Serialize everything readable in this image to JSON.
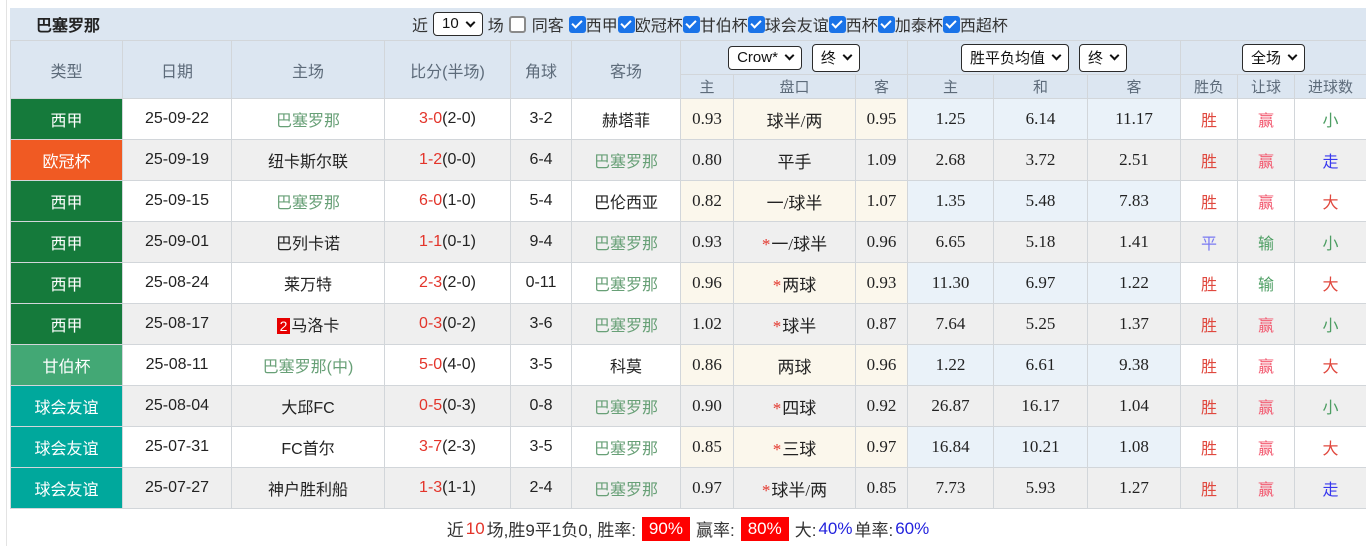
{
  "topbar": {
    "title": "巴塞罗那",
    "recent_label": "近",
    "recent_value": "10",
    "games_label": "场",
    "same_venue": {
      "label": "同客",
      "checked": false
    },
    "leagues": [
      {
        "label": "西甲",
        "checked": true
      },
      {
        "label": "欧冠杯",
        "checked": true
      },
      {
        "label": "甘伯杯",
        "checked": true
      },
      {
        "label": "球会友谊",
        "checked": true
      },
      {
        "label": "西杯",
        "checked": true
      },
      {
        "label": "加泰杯",
        "checked": true
      },
      {
        "label": "西超杯",
        "checked": true
      }
    ]
  },
  "table": {
    "headers": {
      "type": "类型",
      "date": "日期",
      "home": "主场",
      "score": "比分(半场)",
      "corners": "角球",
      "away": "客场",
      "odds_group": {
        "provider_select": "Crow*",
        "time_select": "终",
        "home": "主",
        "line": "盘口",
        "away": "客"
      },
      "avg_group": {
        "provider_select": "胜平负均值",
        "time_select": "终",
        "home": "主",
        "draw": "和",
        "away": "客"
      },
      "result_group": {
        "scope_select": "全场",
        "outcome": "胜负",
        "handicap": "让球",
        "goals": "进球数"
      }
    },
    "rows": [
      {
        "league": {
          "label": "西甲",
          "bg": "#157a3b"
        },
        "date": "25-09-22",
        "home": {
          "name": "巴塞罗那",
          "highlight": true
        },
        "score": {
          "main": "3-0",
          "half": "(2-0)"
        },
        "corners": "3-2",
        "away": {
          "name": "赫塔菲",
          "highlight": false
        },
        "odds": {
          "home": "0.93",
          "star": false,
          "line": "球半/两",
          "away": "0.95"
        },
        "avg": {
          "home": "1.25",
          "draw": "6.14",
          "away": "11.17"
        },
        "result": {
          "outcome": {
            "label": "胜",
            "color": "red"
          },
          "handicap": {
            "label": "赢",
            "color": "pink"
          },
          "goals": {
            "label": "小",
            "color": "green"
          }
        }
      },
      {
        "league": {
          "label": "欧冠杯",
          "bg": "#f05a23"
        },
        "date": "25-09-19",
        "home": {
          "name": "纽卡斯尔联",
          "highlight": false
        },
        "score": {
          "main": "1-2",
          "half": "(0-0)"
        },
        "corners": "6-4",
        "away": {
          "name": "巴塞罗那",
          "highlight": true
        },
        "odds": {
          "home": "0.80",
          "star": false,
          "line": "平手",
          "away": "1.09"
        },
        "avg": {
          "home": "2.68",
          "draw": "3.72",
          "away": "2.51"
        },
        "result": {
          "outcome": {
            "label": "胜",
            "color": "red"
          },
          "handicap": {
            "label": "赢",
            "color": "pink"
          },
          "goals": {
            "label": "走",
            "color": "blue"
          }
        }
      },
      {
        "league": {
          "label": "西甲",
          "bg": "#157a3b"
        },
        "date": "25-09-15",
        "home": {
          "name": "巴塞罗那",
          "highlight": true
        },
        "score": {
          "main": "6-0",
          "half": "(1-0)"
        },
        "corners": "5-4",
        "away": {
          "name": "巴伦西亚",
          "highlight": false
        },
        "odds": {
          "home": "0.82",
          "star": false,
          "line": "一/球半",
          "away": "1.07"
        },
        "avg": {
          "home": "1.35",
          "draw": "5.48",
          "away": "7.83"
        },
        "result": {
          "outcome": {
            "label": "胜",
            "color": "red"
          },
          "handicap": {
            "label": "赢",
            "color": "pink"
          },
          "goals": {
            "label": "大",
            "color": "red"
          }
        }
      },
      {
        "league": {
          "label": "西甲",
          "bg": "#157a3b"
        },
        "date": "25-09-01",
        "home": {
          "name": "巴列卡诺",
          "highlight": false
        },
        "score": {
          "main": "1-1",
          "half": "(0-1)"
        },
        "corners": "9-4",
        "away": {
          "name": "巴塞罗那",
          "highlight": true
        },
        "odds": {
          "home": "0.93",
          "star": true,
          "line": "一/球半",
          "away": "0.96"
        },
        "avg": {
          "home": "6.65",
          "draw": "5.18",
          "away": "1.41"
        },
        "result": {
          "outcome": {
            "label": "平",
            "color": "purple"
          },
          "handicap": {
            "label": "输",
            "color": "green"
          },
          "goals": {
            "label": "小",
            "color": "green"
          }
        }
      },
      {
        "league": {
          "label": "西甲",
          "bg": "#157a3b"
        },
        "date": "25-08-24",
        "home": {
          "name": "莱万特",
          "highlight": false
        },
        "score": {
          "main": "2-3",
          "half": "(2-0)"
        },
        "corners": "0-11",
        "away": {
          "name": "巴塞罗那",
          "highlight": true
        },
        "odds": {
          "home": "0.96",
          "star": true,
          "line": "两球",
          "away": "0.93"
        },
        "avg": {
          "home": "11.30",
          "draw": "6.97",
          "away": "1.22"
        },
        "result": {
          "outcome": {
            "label": "胜",
            "color": "red"
          },
          "handicap": {
            "label": "输",
            "color": "green"
          },
          "goals": {
            "label": "大",
            "color": "red"
          }
        }
      },
      {
        "league": {
          "label": "西甲",
          "bg": "#157a3b"
        },
        "date": "25-08-17",
        "home": {
          "name": "马洛卡",
          "highlight": false,
          "badge": "2"
        },
        "score": {
          "main": "0-3",
          "half": "(0-2)"
        },
        "corners": "3-6",
        "away": {
          "name": "巴塞罗那",
          "highlight": true
        },
        "odds": {
          "home": "1.02",
          "star": true,
          "line": "球半",
          "away": "0.87"
        },
        "avg": {
          "home": "7.64",
          "draw": "5.25",
          "away": "1.37"
        },
        "result": {
          "outcome": {
            "label": "胜",
            "color": "red"
          },
          "handicap": {
            "label": "赢",
            "color": "pink"
          },
          "goals": {
            "label": "小",
            "color": "green"
          }
        }
      },
      {
        "league": {
          "label": "甘伯杯",
          "bg": "#43a875"
        },
        "date": "25-08-11",
        "home": {
          "name": "巴塞罗那(中)",
          "highlight": true
        },
        "score": {
          "main": "5-0",
          "half": "(4-0)"
        },
        "corners": "3-5",
        "away": {
          "name": "科莫",
          "highlight": false
        },
        "odds": {
          "home": "0.86",
          "star": false,
          "line": "两球",
          "away": "0.96"
        },
        "avg": {
          "home": "1.22",
          "draw": "6.61",
          "away": "9.38"
        },
        "result": {
          "outcome": {
            "label": "胜",
            "color": "red"
          },
          "handicap": {
            "label": "赢",
            "color": "pink"
          },
          "goals": {
            "label": "大",
            "color": "red"
          }
        }
      },
      {
        "league": {
          "label": "球会友谊",
          "bg": "#00a89c"
        },
        "date": "25-08-04",
        "home": {
          "name": "大邱FC",
          "highlight": false
        },
        "score": {
          "main": "0-5",
          "half": "(0-3)"
        },
        "corners": "0-8",
        "away": {
          "name": "巴塞罗那",
          "highlight": true
        },
        "odds": {
          "home": "0.90",
          "star": true,
          "line": "四球",
          "away": "0.92"
        },
        "avg": {
          "home": "26.87",
          "draw": "16.17",
          "away": "1.04"
        },
        "result": {
          "outcome": {
            "label": "胜",
            "color": "red"
          },
          "handicap": {
            "label": "赢",
            "color": "pink"
          },
          "goals": {
            "label": "小",
            "color": "green"
          }
        }
      },
      {
        "league": {
          "label": "球会友谊",
          "bg": "#00a89c"
        },
        "date": "25-07-31",
        "home": {
          "name": "FC首尔",
          "highlight": false
        },
        "score": {
          "main": "3-7",
          "half": "(2-3)"
        },
        "corners": "3-5",
        "away": {
          "name": "巴塞罗那",
          "highlight": true
        },
        "odds": {
          "home": "0.85",
          "star": true,
          "line": "三球",
          "away": "0.97"
        },
        "avg": {
          "home": "16.84",
          "draw": "10.21",
          "away": "1.08"
        },
        "result": {
          "outcome": {
            "label": "胜",
            "color": "red"
          },
          "handicap": {
            "label": "赢",
            "color": "pink"
          },
          "goals": {
            "label": "大",
            "color": "red"
          }
        }
      },
      {
        "league": {
          "label": "球会友谊",
          "bg": "#00a89c"
        },
        "date": "25-07-27",
        "home": {
          "name": "神户胜利船",
          "highlight": false
        },
        "score": {
          "main": "1-3",
          "half": "(1-1)"
        },
        "corners": "2-4",
        "away": {
          "name": "巴塞罗那",
          "highlight": true
        },
        "odds": {
          "home": "0.97",
          "star": true,
          "line": "球半/两",
          "away": "0.85"
        },
        "avg": {
          "home": "7.73",
          "draw": "5.93",
          "away": "1.27"
        },
        "result": {
          "outcome": {
            "label": "胜",
            "color": "red"
          },
          "handicap": {
            "label": "赢",
            "color": "pink"
          },
          "goals": {
            "label": "走",
            "color": "blue"
          }
        }
      }
    ]
  },
  "footer": {
    "segments": [
      {
        "text": "近",
        "style": "plain"
      },
      {
        "text": "10",
        "style": "red-text"
      },
      {
        "text": "场,胜9平1负0, 胜率:",
        "style": "plain"
      },
      {
        "text": "90%",
        "style": "pct-badge"
      },
      {
        "text": "赢率:",
        "style": "plain"
      },
      {
        "text": "80%",
        "style": "pct-badge"
      },
      {
        "text": "大:",
        "style": "plain"
      },
      {
        "text": "40%",
        "style": "blue-text"
      },
      {
        "text": " 单率:",
        "style": "plain"
      },
      {
        "text": "60%",
        "style": "blue-text"
      }
    ]
  },
  "colors": {
    "header_bg": "#dce6f1",
    "row_alt_bg": "#efefef",
    "odds_col_bg": "#fbf7ec",
    "avg_col_bg": "#eaf2f9",
    "laliga_green": "#157a3b",
    "ucl_orange": "#f05a23",
    "gamper_green": "#43a875",
    "friendly_teal": "#00a89c",
    "score_red": "#e3342a",
    "team_green": "#68a077",
    "win_red": "#e0483e",
    "cover_pink": "#f25a70",
    "lose_green": "#4d9e63",
    "push_blue": "#3838ee",
    "draw_purple": "#7a7af2",
    "pct_badge_bg": "#fe0000",
    "checkbox_blue": "#1a73e8"
  }
}
